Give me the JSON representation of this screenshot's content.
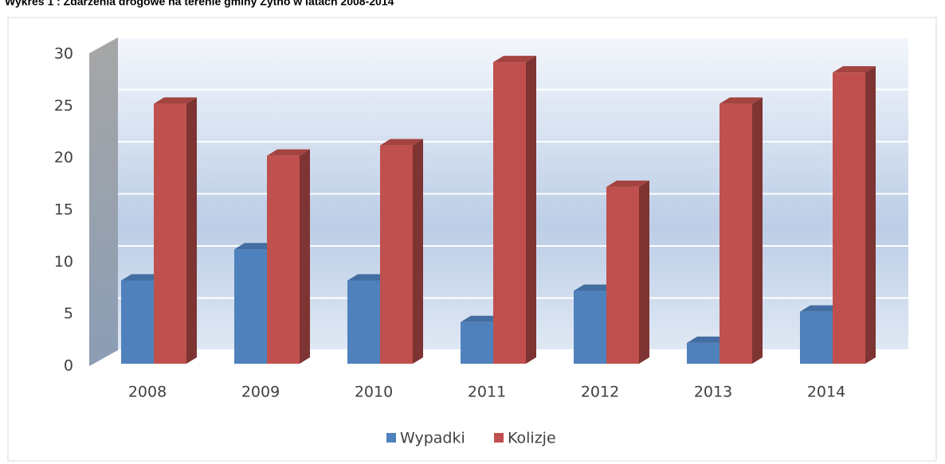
{
  "chart_data": {
    "type": "bar3d",
    "title": "Wykres 1 : Zdarzenia drogowe na terenie gminy Żytno w latach 2008-2014",
    "categories": [
      "2008",
      "2009",
      "2010",
      "2011",
      "2012",
      "2013",
      "2014"
    ],
    "series": [
      {
        "name": "Wypadki",
        "color": "#4f81bd",
        "values": [
          8,
          11,
          8,
          4,
          7,
          2,
          5
        ]
      },
      {
        "name": "Kolizje",
        "color": "#c0504d",
        "values": [
          25,
          20,
          21,
          29,
          17,
          25,
          28
        ]
      }
    ],
    "ylim": [
      0,
      30
    ],
    "yticks": [
      0,
      5,
      10,
      15,
      20,
      25,
      30
    ],
    "grid": true,
    "legend": "bottom"
  }
}
